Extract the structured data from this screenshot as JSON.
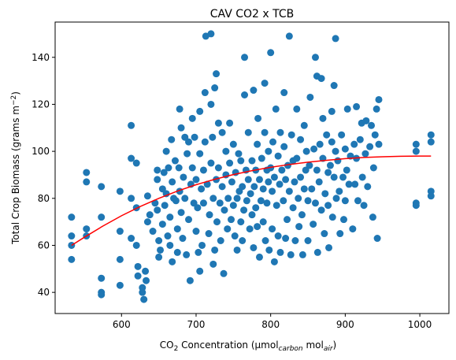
{
  "chart_data": {
    "type": "scatter",
    "title": "CAV CO2 x TCB",
    "xlabel": {
      "co2_main": "CO",
      "co2_sub": "2",
      "text1": " Concentration (μmol",
      "sub1": "carbon",
      "text2": " mol",
      "sub2": "air",
      "text3": ")"
    },
    "ylabel": {
      "text1": "Total Crop Biomass (grams m",
      "sup": "−2",
      "text2": ")"
    },
    "xlim": [
      511,
      1039
    ],
    "ylim": [
      31,
      155
    ],
    "xticks": [
      600,
      700,
      800,
      900,
      1000
    ],
    "yticks": [
      40,
      60,
      80,
      100,
      120,
      140
    ],
    "grid": false,
    "point_color": "#1f77b4",
    "fit_color": "#ff0000",
    "scatter_points": [
      [
        533,
        72
      ],
      [
        533,
        64
      ],
      [
        533,
        60
      ],
      [
        533,
        54
      ],
      [
        553,
        91
      ],
      [
        553,
        87
      ],
      [
        553,
        67
      ],
      [
        553,
        64
      ],
      [
        573,
        85
      ],
      [
        573,
        72
      ],
      [
        573,
        46
      ],
      [
        573,
        40
      ],
      [
        573,
        39
      ],
      [
        598,
        83
      ],
      [
        598,
        66
      ],
      [
        598,
        54
      ],
      [
        598,
        43
      ],
      [
        613,
        111
      ],
      [
        613,
        97
      ],
      [
        613,
        80
      ],
      [
        613,
        63
      ],
      [
        620,
        95
      ],
      [
        620,
        76
      ],
      [
        620,
        60
      ],
      [
        622,
        51
      ],
      [
        622,
        47
      ],
      [
        628,
        42
      ],
      [
        628,
        40
      ],
      [
        630,
        37
      ],
      [
        632,
        49
      ],
      [
        633,
        45
      ],
      [
        635,
        81
      ],
      [
        635,
        70
      ],
      [
        638,
        73
      ],
      [
        642,
        66
      ],
      [
        645,
        78
      ],
      [
        648,
        92
      ],
      [
        648,
        88
      ],
      [
        648,
        75
      ],
      [
        650,
        62
      ],
      [
        650,
        55
      ],
      [
        652,
        58
      ],
      [
        655,
        69
      ],
      [
        655,
        84
      ],
      [
        657,
        91
      ],
      [
        658,
        77
      ],
      [
        660,
        100
      ],
      [
        660,
        82
      ],
      [
        662,
        64
      ],
      [
        663,
        93
      ],
      [
        665,
        72
      ],
      [
        665,
        60
      ],
      [
        667,
        105
      ],
      [
        668,
        87
      ],
      [
        668,
        53
      ],
      [
        670,
        80
      ],
      [
        672,
        96
      ],
      [
        673,
        79
      ],
      [
        675,
        67
      ],
      [
        675,
        57
      ],
      [
        677,
        93
      ],
      [
        678,
        118
      ],
      [
        678,
        83
      ],
      [
        680,
        110
      ],
      [
        680,
        74
      ],
      [
        682,
        63
      ],
      [
        683,
        89
      ],
      [
        685,
        106
      ],
      [
        685,
        80
      ],
      [
        687,
        56
      ],
      [
        688,
        99
      ],
      [
        690,
        104
      ],
      [
        690,
        71
      ],
      [
        692,
        45
      ],
      [
        693,
        86
      ],
      [
        695,
        114
      ],
      [
        695,
        93
      ],
      [
        697,
        78
      ],
      [
        698,
        106
      ],
      [
        700,
        66
      ],
      [
        700,
        88
      ],
      [
        702,
        76
      ],
      [
        703,
        57
      ],
      [
        705,
        117
      ],
      [
        705,
        99
      ],
      [
        705,
        49
      ],
      [
        707,
        84
      ],
      [
        708,
        60
      ],
      [
        710,
        92
      ],
      [
        710,
        78
      ],
      [
        712,
        104
      ],
      [
        712,
        125
      ],
      [
        713,
        149
      ],
      [
        715,
        86
      ],
      [
        717,
        65
      ],
      [
        718,
        73
      ],
      [
        720,
        150
      ],
      [
        720,
        120
      ],
      [
        720,
        95
      ],
      [
        722,
        106
      ],
      [
        723,
        80
      ],
      [
        723,
        52
      ],
      [
        725,
        127
      ],
      [
        725,
        58
      ],
      [
        727,
        133
      ],
      [
        727,
        88
      ],
      [
        728,
        70
      ],
      [
        730,
        112
      ],
      [
        730,
        93
      ],
      [
        732,
        78
      ],
      [
        733,
        62
      ],
      [
        735,
        108
      ],
      [
        735,
        85
      ],
      [
        737,
        48
      ],
      [
        738,
        75
      ],
      [
        740,
        100
      ],
      [
        740,
        90
      ],
      [
        742,
        67
      ],
      [
        743,
        80
      ],
      [
        745,
        112
      ],
      [
        745,
        95
      ],
      [
        747,
        71
      ],
      [
        748,
        87
      ],
      [
        750,
        103
      ],
      [
        750,
        77
      ],
      [
        752,
        64
      ],
      [
        753,
        91
      ],
      [
        755,
        58
      ],
      [
        755,
        80
      ],
      [
        757,
        99
      ],
      [
        758,
        83
      ],
      [
        760,
        96
      ],
      [
        760,
        70
      ],
      [
        762,
        85
      ],
      [
        762,
        62
      ],
      [
        764,
        75
      ],
      [
        765,
        140
      ],
      [
        765,
        124
      ],
      [
        767,
        92
      ],
      [
        768,
        79
      ],
      [
        770,
        108
      ],
      [
        770,
        88
      ],
      [
        772,
        67
      ],
      [
        773,
        82
      ],
      [
        775,
        96
      ],
      [
        775,
        73
      ],
      [
        777,
        126
      ],
      [
        777,
        59
      ],
      [
        778,
        85
      ],
      [
        780,
        92
      ],
      [
        780,
        76
      ],
      [
        782,
        103
      ],
      [
        782,
        68
      ],
      [
        783,
        114
      ],
      [
        785,
        88
      ],
      [
        785,
        55
      ],
      [
        787,
        79
      ],
      [
        788,
        97
      ],
      [
        790,
        84
      ],
      [
        790,
        70
      ],
      [
        792,
        129
      ],
      [
        792,
        108
      ],
      [
        793,
        62
      ],
      [
        795,
        92
      ],
      [
        795,
        78
      ],
      [
        797,
        100
      ],
      [
        797,
        87
      ],
      [
        798,
        58
      ],
      [
        800,
        142
      ],
      [
        800,
        93
      ],
      [
        802,
        83
      ],
      [
        802,
        67
      ],
      [
        803,
        104
      ],
      [
        805,
        89
      ],
      [
        805,
        53
      ],
      [
        807,
        118
      ],
      [
        808,
        77
      ],
      [
        810,
        98
      ],
      [
        810,
        64
      ],
      [
        812,
        86
      ],
      [
        813,
        108
      ],
      [
        813,
        57
      ],
      [
        815,
        92
      ],
      [
        817,
        79
      ],
      [
        818,
        125
      ],
      [
        818,
        102
      ],
      [
        820,
        88
      ],
      [
        820,
        63
      ],
      [
        822,
        71
      ],
      [
        823,
        94
      ],
      [
        825,
        149
      ],
      [
        825,
        83
      ],
      [
        827,
        56
      ],
      [
        828,
        107
      ],
      [
        830,
        76
      ],
      [
        830,
        96
      ],
      [
        832,
        87
      ],
      [
        833,
        62
      ],
      [
        835,
        118
      ],
      [
        835,
        97
      ],
      [
        837,
        80
      ],
      [
        838,
        68
      ],
      [
        840,
        105
      ],
      [
        840,
        89
      ],
      [
        842,
        73
      ],
      [
        843,
        56
      ],
      [
        845,
        111
      ],
      [
        845,
        84
      ],
      [
        847,
        92
      ],
      [
        848,
        100
      ],
      [
        850,
        79
      ],
      [
        850,
        62
      ],
      [
        852,
        94
      ],
      [
        853,
        123
      ],
      [
        855,
        84
      ],
      [
        857,
        69
      ],
      [
        858,
        101
      ],
      [
        860,
        140
      ],
      [
        860,
        78
      ],
      [
        862,
        132
      ],
      [
        862,
        92
      ],
      [
        863,
        57
      ],
      [
        865,
        87
      ],
      [
        866,
        103
      ],
      [
        868,
        75
      ],
      [
        868,
        131
      ],
      [
        870,
        114
      ],
      [
        870,
        97
      ],
      [
        872,
        65
      ],
      [
        873,
        82
      ],
      [
        875,
        107
      ],
      [
        877,
        91
      ],
      [
        877,
        77
      ],
      [
        878,
        59
      ],
      [
        880,
        94
      ],
      [
        882,
        117
      ],
      [
        882,
        104
      ],
      [
        883,
        72
      ],
      [
        885,
        128
      ],
      [
        885,
        89
      ],
      [
        887,
        148
      ],
      [
        887,
        100
      ],
      [
        888,
        80
      ],
      [
        890,
        96
      ],
      [
        892,
        83
      ],
      [
        893,
        65
      ],
      [
        895,
        107
      ],
      [
        897,
        89
      ],
      [
        898,
        71
      ],
      [
        900,
        101
      ],
      [
        900,
        79
      ],
      [
        902,
        92
      ],
      [
        903,
        118
      ],
      [
        905,
        86
      ],
      [
        907,
        98
      ],
      [
        910,
        67
      ],
      [
        912,
        103
      ],
      [
        913,
        86
      ],
      [
        915,
        119
      ],
      [
        915,
        97
      ],
      [
        917,
        79
      ],
      [
        920,
        105
      ],
      [
        922,
        112
      ],
      [
        923,
        89
      ],
      [
        925,
        77
      ],
      [
        927,
        99
      ],
      [
        928,
        113
      ],
      [
        930,
        85
      ],
      [
        933,
        102
      ],
      [
        935,
        111
      ],
      [
        937,
        72
      ],
      [
        938,
        93
      ],
      [
        940,
        107
      ],
      [
        942,
        118
      ],
      [
        943,
        63
      ],
      [
        945,
        122
      ],
      [
        945,
        103
      ],
      [
        995,
        103
      ],
      [
        995,
        100
      ],
      [
        995,
        78
      ],
      [
        995,
        77
      ],
      [
        1015,
        107
      ],
      [
        1015,
        104
      ],
      [
        1015,
        83
      ],
      [
        1015,
        81
      ]
    ],
    "fit_curve": [
      [
        533,
        60
      ],
      [
        550,
        63.4
      ],
      [
        575,
        68.2
      ],
      [
        600,
        72.6
      ],
      [
        625,
        76.5
      ],
      [
        650,
        80
      ],
      [
        675,
        83.1
      ],
      [
        700,
        85.8
      ],
      [
        725,
        88.1
      ],
      [
        750,
        90.1
      ],
      [
        775,
        91.8
      ],
      [
        800,
        93.2
      ],
      [
        825,
        94.4
      ],
      [
        850,
        95.4
      ],
      [
        875,
        96.2
      ],
      [
        900,
        96.9
      ],
      [
        925,
        97.4
      ],
      [
        950,
        97.7
      ],
      [
        975,
        97.9
      ],
      [
        1000,
        98
      ],
      [
        1015,
        98
      ]
    ]
  }
}
